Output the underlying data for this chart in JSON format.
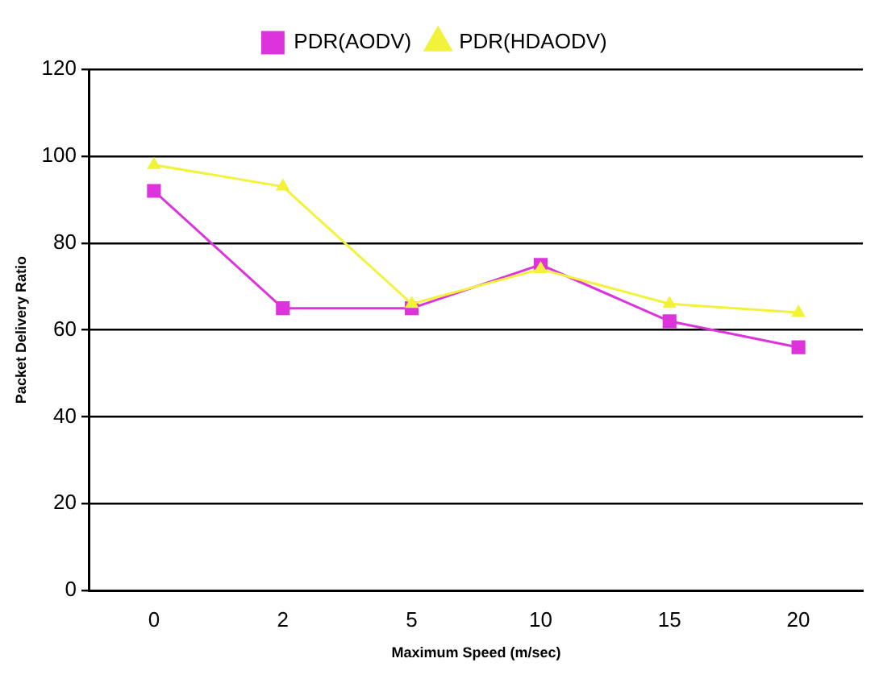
{
  "chart_data": {
    "type": "line",
    "xlabel": "Maximum Speed (m/sec)",
    "ylabel": "Packet Delivery Ratio",
    "categories": [
      "0",
      "2",
      "5",
      "10",
      "15",
      "20"
    ],
    "series": [
      {
        "name": "PDR(AODV)",
        "color": "#dd33dd",
        "marker": "square",
        "values": [
          92,
          65,
          65,
          75,
          62,
          56
        ]
      },
      {
        "name": "PDR(HDAODV)",
        "color": "#f2f23a",
        "marker": "triangle",
        "values": [
          98,
          93,
          66,
          74,
          66,
          64
        ]
      }
    ],
    "ylim": [
      0,
      120
    ],
    "yticks": [
      0,
      20,
      40,
      60,
      80,
      100,
      120
    ],
    "grid": "y",
    "legend": "top",
    "line_style": "solid"
  }
}
